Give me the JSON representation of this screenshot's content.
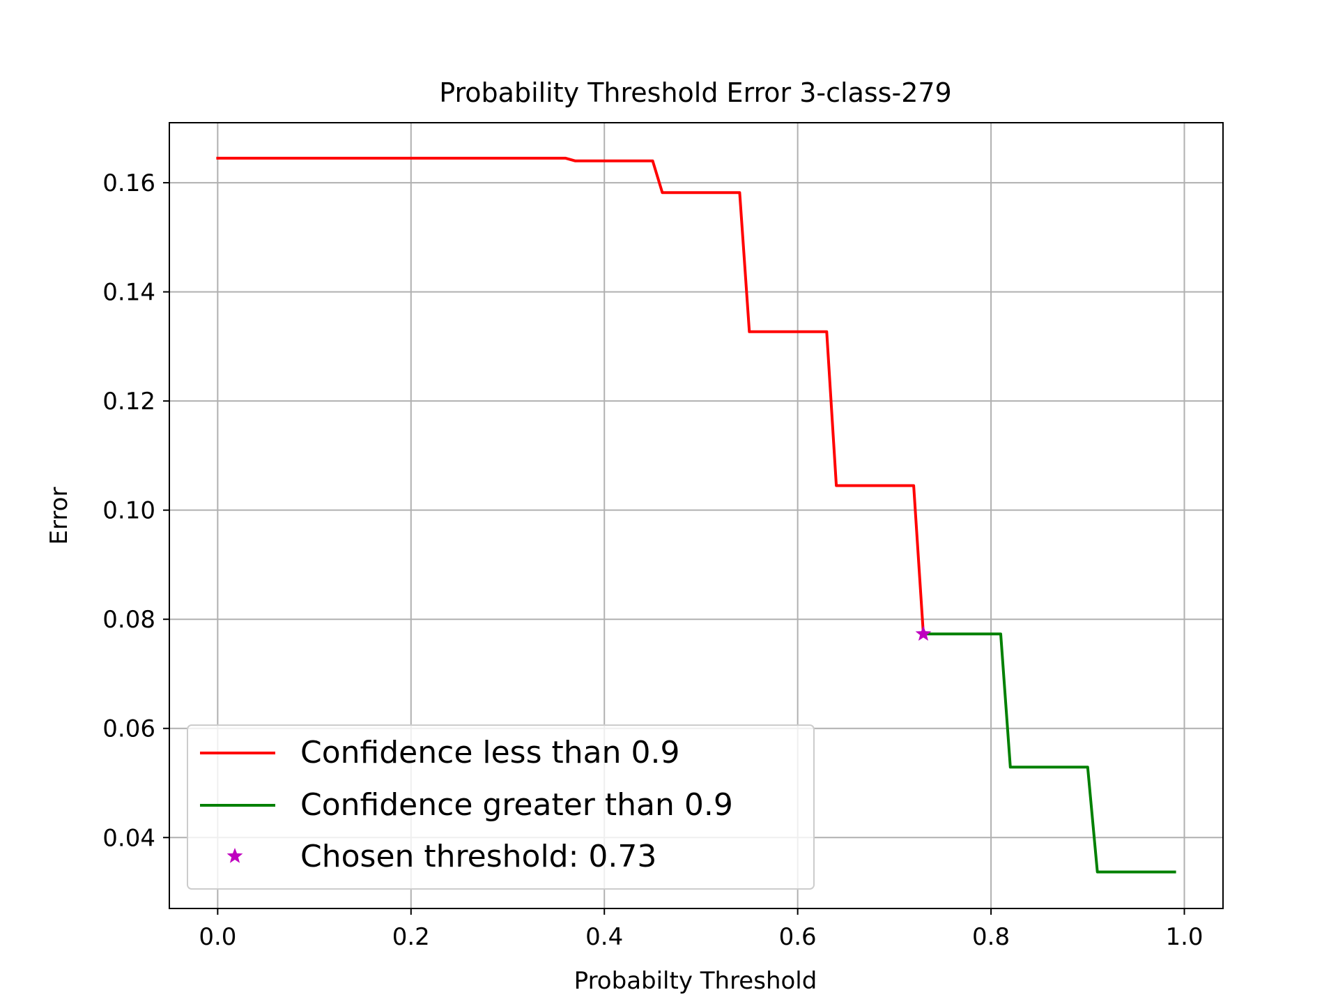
{
  "chart_data": {
    "type": "line",
    "title": "Probability Threshold Error 3-class-279",
    "xlabel": "Probabilty Threshold",
    "ylabel": "Error",
    "xlim": [
      -0.05,
      1.04
    ],
    "ylim": [
      0.027,
      0.171
    ],
    "xticks": [
      0.0,
      0.2,
      0.4,
      0.6,
      0.8,
      1.0
    ],
    "xtick_labels": [
      "0.0",
      "0.2",
      "0.4",
      "0.6",
      "0.8",
      "1.0"
    ],
    "yticks": [
      0.04,
      0.06,
      0.08,
      0.1,
      0.12,
      0.14,
      0.16
    ],
    "ytick_labels": [
      "0.04",
      "0.06",
      "0.08",
      "0.10",
      "0.12",
      "0.14",
      "0.16"
    ],
    "grid": true,
    "legend_position": "lower-left",
    "series": [
      {
        "name": "Confidence less than 0.9",
        "color": "#ff0000",
        "x": [
          0.0,
          0.36,
          0.37,
          0.45,
          0.46,
          0.54,
          0.55,
          0.63,
          0.64,
          0.72,
          0.73
        ],
        "y": [
          0.1645,
          0.1645,
          0.164,
          0.164,
          0.1582,
          0.1582,
          0.1327,
          0.1327,
          0.1045,
          0.1045,
          0.0773
        ]
      },
      {
        "name": "Confidence greater than 0.9",
        "color": "#008000",
        "x": [
          0.73,
          0.81,
          0.82,
          0.9,
          0.91,
          0.99
        ],
        "y": [
          0.0773,
          0.0773,
          0.0529,
          0.0529,
          0.0337,
          0.0337
        ]
      }
    ],
    "marker": {
      "name": "Chosen threshold: 0.73",
      "color": "#bf00bf",
      "symbol": "star",
      "x": 0.73,
      "y": 0.0773
    }
  }
}
